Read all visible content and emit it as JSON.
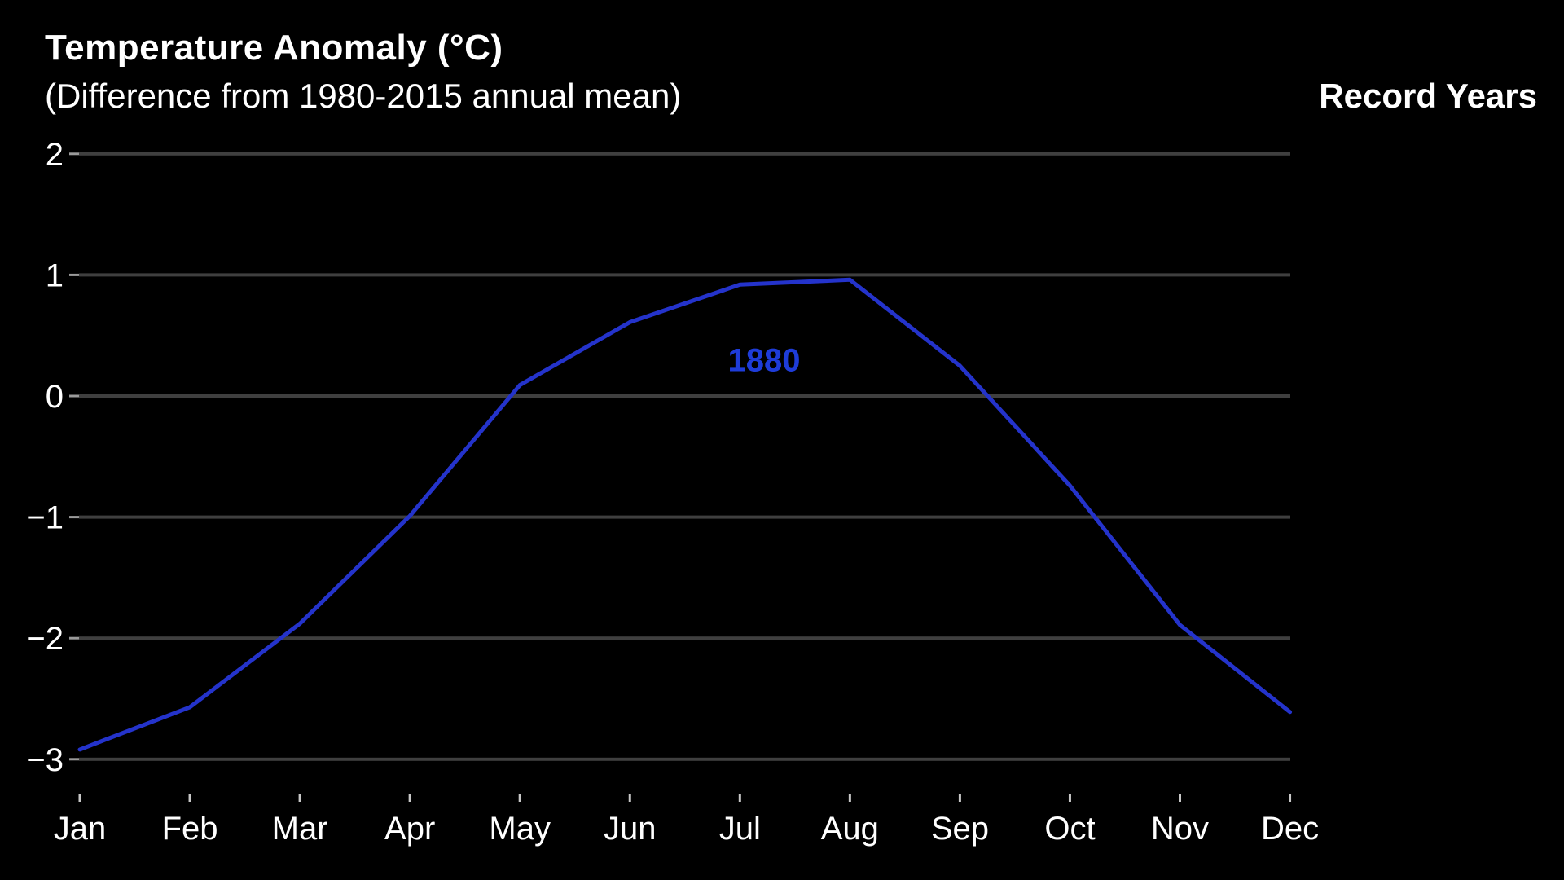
{
  "header": {
    "title": "Temperature Anomaly (°C)",
    "subtitle": "(Difference from 1980-2015 annual mean)",
    "legend_title": "Record Years"
  },
  "chart_data": {
    "type": "line",
    "title": "Temperature Anomaly (°C)",
    "subtitle": "(Difference from 1980-2015 annual mean)",
    "x_categories": [
      "Jan",
      "Feb",
      "Mar",
      "Apr",
      "May",
      "Jun",
      "Jul",
      "Aug",
      "Sep",
      "Oct",
      "Nov",
      "Dec"
    ],
    "series": [
      {
        "name": "1880",
        "color": "#2433cb",
        "values": [
          -2.92,
          -2.57,
          -1.88,
          -0.99,
          0.09,
          0.61,
          0.92,
          0.96,
          0.25,
          -0.74,
          -1.89,
          -2.61
        ]
      }
    ],
    "annotations": [
      {
        "text": "1880",
        "x_index": 6.22,
        "y_value": 0.3,
        "color": "#1e3cd9"
      }
    ],
    "ylim": [
      -3,
      2
    ],
    "yticks": [
      2,
      1,
      0,
      -1,
      -2,
      -3
    ],
    "ytick_labels": [
      "2",
      "1",
      "0",
      "−1",
      "−2",
      "−3"
    ],
    "grid": "horizontal",
    "legend_position": "top-right",
    "colors": {
      "background": "#000000",
      "text": "#ffffff",
      "gridline": "#3f3f3f",
      "y_tick": "#9a9a9a",
      "x_tick": "#c8c8c8"
    }
  }
}
